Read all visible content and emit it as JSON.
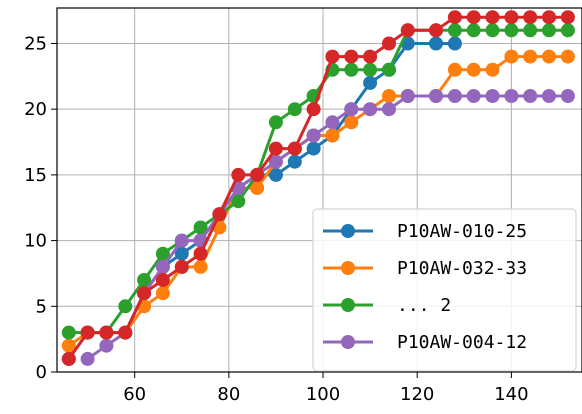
{
  "chart_data": {
    "type": "line",
    "title": "",
    "xlabel": "",
    "ylabel": "",
    "xlim": [
      43.5,
      155
    ],
    "ylim": [
      0,
      27.7
    ],
    "xticks": [
      60,
      80,
      100,
      120,
      140
    ],
    "yticks": [
      0,
      5,
      10,
      15,
      20,
      25
    ],
    "grid": true,
    "legend_position": "lower-right",
    "series": [
      {
        "name": "P10AW-010-25",
        "color": "#1f77b4",
        "points": [
          [
            46,
            1
          ],
          [
            50,
            3
          ],
          [
            54,
            3
          ],
          [
            58,
            3
          ],
          [
            62,
            6
          ],
          [
            66,
            8
          ],
          [
            70,
            9
          ],
          [
            74,
            10
          ],
          [
            78,
            12
          ],
          [
            82,
            14
          ],
          [
            86,
            15
          ],
          [
            90,
            15
          ],
          [
            94,
            16
          ],
          [
            98,
            17
          ],
          [
            102,
            18
          ],
          [
            106,
            20
          ],
          [
            110,
            22
          ],
          [
            114,
            23
          ],
          [
            118,
            25
          ],
          [
            124,
            25
          ],
          [
            128,
            25
          ]
        ]
      },
      {
        "name": "P10AW-032-33",
        "color": "#ff7f0e",
        "points": [
          [
            46,
            2
          ],
          [
            50,
            3
          ],
          [
            54,
            3
          ],
          [
            58,
            3
          ],
          [
            62,
            5
          ],
          [
            66,
            6
          ],
          [
            70,
            8
          ],
          [
            74,
            8
          ],
          [
            78,
            11
          ],
          [
            82,
            14
          ],
          [
            86,
            14
          ],
          [
            90,
            16
          ],
          [
            94,
            17
          ],
          [
            98,
            18
          ],
          [
            102,
            18
          ],
          [
            106,
            19
          ],
          [
            110,
            20
          ],
          [
            114,
            21
          ],
          [
            118,
            21
          ],
          [
            124,
            21
          ],
          [
            128,
            23
          ],
          [
            132,
            23
          ],
          [
            136,
            23
          ],
          [
            140,
            24
          ],
          [
            144,
            24
          ],
          [
            148,
            24
          ],
          [
            152,
            24
          ]
        ]
      },
      {
        "name": "... 2",
        "color": "#2ca02c",
        "points": [
          [
            46,
            3
          ],
          [
            50,
            3
          ],
          [
            54,
            3
          ],
          [
            58,
            5
          ],
          [
            62,
            7
          ],
          [
            66,
            9
          ],
          [
            70,
            10
          ],
          [
            74,
            11
          ],
          [
            78,
            12
          ],
          [
            82,
            13
          ],
          [
            86,
            15
          ],
          [
            90,
            19
          ],
          [
            94,
            20
          ],
          [
            98,
            21
          ],
          [
            102,
            23
          ],
          [
            106,
            23
          ],
          [
            110,
            23
          ],
          [
            114,
            23
          ],
          [
            118,
            26
          ],
          [
            124,
            26
          ],
          [
            128,
            26
          ],
          [
            132,
            26
          ],
          [
            136,
            26
          ],
          [
            140,
            26
          ],
          [
            144,
            26
          ],
          [
            148,
            26
          ],
          [
            152,
            26
          ]
        ]
      },
      {
        "name": "P10AW-004-12",
        "color": "#9467bd",
        "points": [
          [
            50,
            1
          ],
          [
            54,
            2
          ],
          [
            58,
            3
          ],
          [
            62,
            6
          ],
          [
            66,
            8
          ],
          [
            70,
            10
          ],
          [
            74,
            10
          ],
          [
            78,
            12
          ],
          [
            82,
            14
          ],
          [
            86,
            15
          ],
          [
            90,
            16
          ],
          [
            94,
            17
          ],
          [
            98,
            18
          ],
          [
            102,
            19
          ],
          [
            106,
            20
          ],
          [
            110,
            20
          ],
          [
            114,
            20
          ],
          [
            118,
            21
          ],
          [
            124,
            21
          ],
          [
            128,
            21
          ],
          [
            132,
            21
          ],
          [
            136,
            21
          ],
          [
            140,
            21
          ],
          [
            144,
            21
          ],
          [
            148,
            21
          ],
          [
            152,
            21
          ]
        ]
      },
      {
        "name": "",
        "color": "#d62728",
        "points": [
          [
            46,
            1
          ],
          [
            50,
            3
          ],
          [
            54,
            3
          ],
          [
            58,
            3
          ],
          [
            62,
            6
          ],
          [
            66,
            7
          ],
          [
            70,
            8
          ],
          [
            74,
            9
          ],
          [
            78,
            12
          ],
          [
            82,
            15
          ],
          [
            86,
            15
          ],
          [
            90,
            17
          ],
          [
            94,
            17
          ],
          [
            98,
            20
          ],
          [
            102,
            24
          ],
          [
            106,
            24
          ],
          [
            110,
            24
          ],
          [
            114,
            25
          ],
          [
            118,
            26
          ],
          [
            124,
            26
          ],
          [
            128,
            27
          ],
          [
            132,
            27
          ],
          [
            136,
            27
          ],
          [
            140,
            27
          ],
          [
            144,
            27
          ],
          [
            148,
            27
          ],
          [
            152,
            27
          ]
        ]
      }
    ]
  }
}
